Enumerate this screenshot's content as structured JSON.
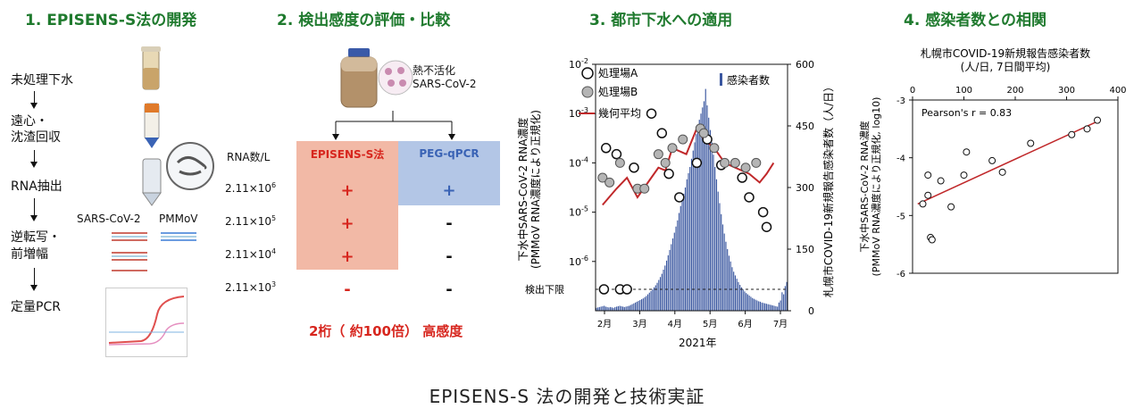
{
  "section1": {
    "title": "1. EPISENS-S法の開発",
    "steps": [
      "未処理下水",
      "遠心・",
      "沈渣回収",
      "RNA抽出",
      "逆転写・",
      "前増幅",
      "定量PCR"
    ],
    "targets": [
      "SARS-CoV-2",
      "PMMoV"
    ]
  },
  "section2": {
    "title": "2. 検出感度の評価・比較",
    "virus_label_1": "熱不活化",
    "virus_label_2": "SARS-CoV-2",
    "rna_header": "RNA数/L",
    "method_a": "EPISENS-S法",
    "method_b": "PEG-qPCR",
    "rows": [
      {
        "rna": "2.11×10",
        "exp": "6",
        "a": "+",
        "b": "+"
      },
      {
        "rna": "2.11×10",
        "exp": "5",
        "a": "+",
        "b": "-"
      },
      {
        "rna": "2.11×10",
        "exp": "4",
        "a": "+",
        "b": "-"
      },
      {
        "rna": "2.11×10",
        "exp": "3",
        "a": "-",
        "b": "-"
      }
    ],
    "result": "2桁（ 約100倍） 高感度",
    "colors": {
      "a_fill": "#f2b9a6",
      "b_fill": "#b3c6e6",
      "plus_a": "#d7261e",
      "plus_b": "#3a63b5"
    }
  },
  "section3": {
    "title": "3. 都市下水への適用",
    "ylabel_left_1": "下水中SARS-CoV-2 RNA濃度",
    "ylabel_left_2": "(PMMoV RNA濃度により正規化)",
    "ylabel_right": "札幌市COVID-19新規報告感染者数（人/日）",
    "y_left_ticks": [
      "10-2",
      "10-3",
      "10-4",
      "10-5",
      "10-6"
    ],
    "y_right_ticks": [
      "600",
      "450",
      "300",
      "150",
      "0"
    ],
    "x_ticks": [
      "2月",
      "3月",
      "4月",
      "5月",
      "6月",
      "7月"
    ],
    "xlabel": "2021年",
    "detection_limit": "検出下限",
    "legend": {
      "a": "処理場A",
      "b": "処理場B",
      "mean": "幾何平均",
      "cases": "感染者数"
    }
  },
  "section4": {
    "title": "4. 感染者数との相関",
    "chart_title_1": "札幌市COVID-19新規報告感染者数",
    "chart_title_2": "(人/日, 7日間平均)",
    "ylabel_1": "下水中SARS-CoV-2 RNA濃度",
    "ylabel_2": "(PMMoV RNA濃度により正規化, log10)",
    "annotation": "Pearson's r = 0.83",
    "x_ticks": [
      "0",
      "100",
      "200",
      "300",
      "400"
    ],
    "y_ticks": [
      "-3",
      "-4",
      "-5",
      "-6"
    ]
  },
  "chart_data": [
    {
      "type": "bar",
      "title": "3. 都市下水への適用",
      "xlabel": "2021年",
      "ylabel": "札幌市COVID-19新規報告感染者数（人/日）",
      "ylim": [
        0,
        600
      ],
      "categories_range": [
        "2月",
        "7月"
      ],
      "series": [
        {
          "name": "感染者数",
          "values": [
            7,
            8,
            9,
            10,
            11,
            12,
            10,
            9,
            8,
            9,
            8,
            7,
            9,
            10,
            11,
            12,
            11,
            10,
            9,
            10,
            11,
            12,
            14,
            16,
            18,
            20,
            22,
            24,
            26,
            28,
            30,
            33,
            36,
            40,
            44,
            48,
            52,
            57,
            62,
            68,
            75,
            82,
            90,
            100,
            110,
            122,
            135,
            148,
            162,
            176,
            190,
            205,
            220,
            238,
            255,
            270,
            285,
            300,
            320,
            335,
            350,
            370,
            390,
            410,
            430,
            450,
            465,
            480,
            495,
            510,
            540,
            500,
            470,
            440,
            410,
            380,
            350,
            320,
            290,
            262,
            235,
            210,
            188,
            168,
            150,
            134,
            120,
            106,
            95,
            86,
            78,
            70,
            63,
            57,
            52,
            47,
            43,
            40,
            37,
            34,
            31,
            29,
            27,
            25,
            23,
            22,
            20,
            19,
            18,
            17,
            16,
            15,
            14,
            13,
            12,
            11,
            10,
            20,
            25,
            45,
            40,
            60,
            70
          ]
        }
      ]
    },
    {
      "type": "scatter",
      "ylabel": "下水中SARS-CoV-2 RNA濃度 (PMMoV RNA濃度により正規化)",
      "yscale": "log",
      "ylim": [
        1e-07,
        0.01
      ],
      "series": [
        {
          "name": "処理場A",
          "values": [
            [
              0.15,
              0.0002
            ],
            [
              0.3,
              0.00015
            ],
            [
              0.55,
              8e-05
            ],
            [
              0.8,
              0.001
            ],
            [
              0.95,
              0.0004
            ],
            [
              1.05,
              6e-05
            ],
            [
              1.2,
              2e-05
            ],
            [
              1.45,
              0.0001
            ],
            [
              1.6,
              0.0003
            ],
            [
              1.8,
              9e-05
            ],
            [
              2.1,
              5e-05
            ],
            [
              2.2,
              2e-05
            ],
            [
              2.4,
              1e-05
            ],
            [
              2.45,
              5e-06
            ]
          ]
        },
        {
          "name": "処理場B",
          "values": [
            [
              0.1,
              5e-05
            ],
            [
              0.2,
              4e-05
            ],
            [
              0.35,
              0.0001
            ],
            [
              0.6,
              3e-05
            ],
            [
              0.7,
              3e-05
            ],
            [
              0.9,
              0.00015
            ],
            [
              1.0,
              0.0001
            ],
            [
              1.1,
              0.0002
            ],
            [
              1.25,
              0.0003
            ],
            [
              1.5,
              0.0005
            ],
            [
              1.55,
              0.0004
            ],
            [
              1.7,
              0.0002
            ],
            [
              1.85,
              0.0001
            ],
            [
              2.0,
              0.0001
            ],
            [
              2.15,
              8e-05
            ],
            [
              2.3,
              0.0001
            ]
          ]
        },
        {
          "name": "幾何平均",
          "values": [
            [
              0.1,
              1.4e-05
            ],
            [
              0.3,
              3e-05
            ],
            [
              0.45,
              5e-05
            ],
            [
              0.6,
              2e-05
            ],
            [
              0.75,
              4e-05
            ],
            [
              0.9,
              8e-05
            ],
            [
              1.0,
              7e-05
            ],
            [
              1.1,
              0.0002
            ],
            [
              1.3,
              0.00015
            ],
            [
              1.45,
              0.0005
            ],
            [
              1.55,
              0.0003
            ],
            [
              1.7,
              0.0002
            ],
            [
              1.85,
              0.0001
            ],
            [
              2.0,
              8e-05
            ],
            [
              2.2,
              6e-05
            ],
            [
              2.35,
              4e-05
            ],
            [
              2.45,
              6e-05
            ],
            [
              2.55,
              0.0001
            ]
          ]
        }
      ]
    },
    {
      "type": "scatter",
      "title": "札幌市COVID-19新規報告感染者数 (人/日, 7日間平均)",
      "ylabel": "下水中SARS-CoV-2 RNA濃度 (PMMoV RNA濃度により正規化, log10)",
      "xlim": [
        0,
        400
      ],
      "ylim": [
        -6,
        -3
      ],
      "series": [
        {
          "name": "",
          "values": [
            [
              20,
              -4.8
            ],
            [
              30,
              -4.3
            ],
            [
              30,
              -4.65
            ],
            [
              35,
              -5.38
            ],
            [
              38,
              -5.42
            ],
            [
              55,
              -4.4
            ],
            [
              75,
              -4.85
            ],
            [
              100,
              -4.3
            ],
            [
              105,
              -3.9
            ],
            [
              155,
              -4.05
            ],
            [
              175,
              -4.25
            ],
            [
              230,
              -3.75
            ],
            [
              310,
              -3.6
            ],
            [
              340,
              -3.5
            ],
            [
              360,
              -3.35
            ]
          ]
        }
      ],
      "trend": [
        [
          10,
          -4.8
        ],
        [
          365,
          -3.35
        ]
      ],
      "annotation": "Pearson's r = 0.83"
    }
  ]
}
